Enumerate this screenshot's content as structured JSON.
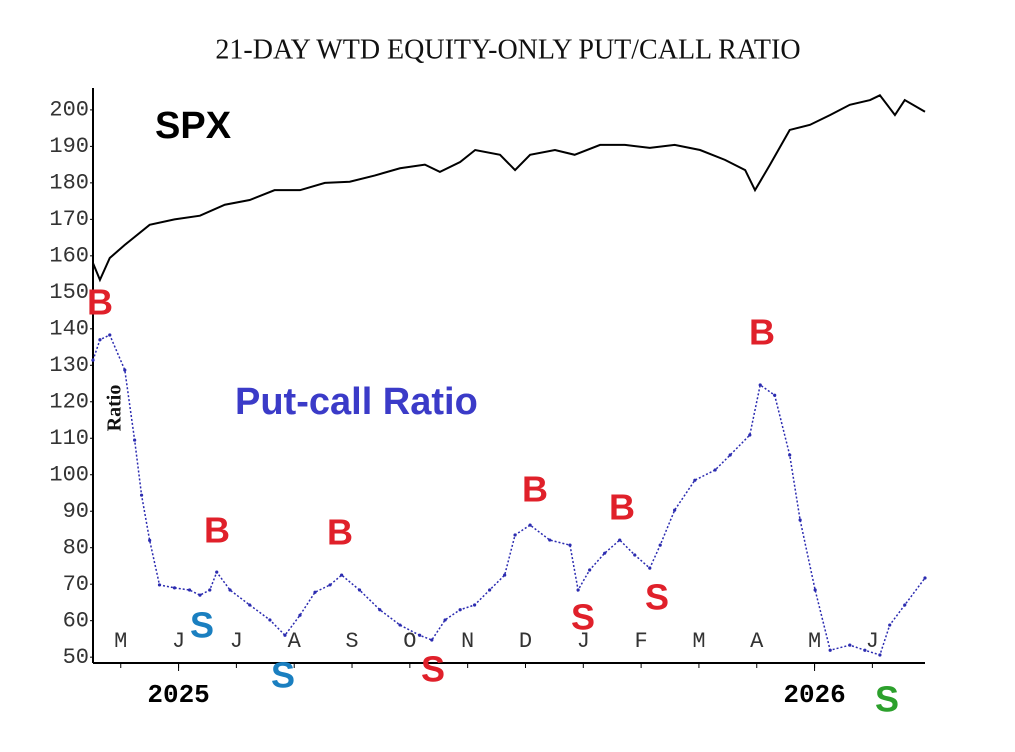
{
  "chart_data": {
    "type": "line",
    "title": "21-DAY WTD EQUITY-ONLY PUT/CALL RATIO",
    "y_label": "Ratio",
    "xlim": [
      -0.48,
      13.91
    ],
    "xticks": [
      {
        "value": 0,
        "label": "M"
      },
      {
        "value": 1,
        "label": "J"
      },
      {
        "value": 2,
        "label": "J"
      },
      {
        "value": 3,
        "label": "A"
      },
      {
        "value": 4,
        "label": "S"
      },
      {
        "value": 5,
        "label": "O"
      },
      {
        "value": 6,
        "label": "N"
      },
      {
        "value": 7,
        "label": "D"
      },
      {
        "value": 8,
        "label": "J"
      },
      {
        "value": 9,
        "label": "F"
      },
      {
        "value": 10,
        "label": "M"
      },
      {
        "value": 11,
        "label": "A"
      },
      {
        "value": 12,
        "label": "M"
      },
      {
        "value": 13,
        "label": "J"
      }
    ],
    "years": [
      {
        "value": 1,
        "label": "2025"
      },
      {
        "value": 12,
        "label": "2026"
      }
    ],
    "ylim": [
      48.4,
      206
    ],
    "yticks": [
      50,
      60,
      70,
      80,
      90,
      100,
      110,
      120,
      130,
      140,
      150,
      160,
      170,
      180,
      190,
      200
    ],
    "series": [
      {
        "name": "SPX",
        "color": "#000000",
        "x": [
          -0.48,
          -0.36,
          -0.19,
          0.07,
          0.5,
          0.93,
          1.37,
          1.8,
          2.23,
          2.66,
          3.1,
          3.53,
          3.96,
          4.39,
          4.83,
          5.26,
          5.52,
          5.87,
          6.13,
          6.56,
          6.82,
          7.08,
          7.51,
          7.85,
          8.29,
          8.72,
          9.15,
          9.58,
          10.02,
          10.45,
          10.8,
          10.97,
          11.23,
          11.57,
          11.92,
          12.27,
          12.61,
          12.96,
          13.13,
          13.39,
          13.56,
          13.91
        ],
        "values": [
          158,
          153.4,
          159.4,
          163,
          168.5,
          170,
          171,
          174,
          175.3,
          178,
          178,
          180,
          180.3,
          182,
          184,
          185,
          183,
          185.7,
          189,
          187.7,
          183.5,
          187.7,
          189,
          187.7,
          190.4,
          190.4,
          189.6,
          190.4,
          189,
          186.3,
          183.5,
          178,
          185,
          194.5,
          195.9,
          198.6,
          201.4,
          202.7,
          204,
          198.6,
          202.7,
          199.5
        ]
      },
      {
        "name": "Put-call Ratio",
        "color": "#2b2bb0",
        "x": [
          -0.48,
          -0.36,
          -0.19,
          0.07,
          0.24,
          0.36,
          0.5,
          0.67,
          0.93,
          1.19,
          1.37,
          1.54,
          1.66,
          1.89,
          2.23,
          2.58,
          2.84,
          3.1,
          3.36,
          3.62,
          3.82,
          4.13,
          4.48,
          4.83,
          5.17,
          5.38,
          5.61,
          5.87,
          6.12,
          6.38,
          6.64,
          6.82,
          7.08,
          7.42,
          7.77,
          7.91,
          8.11,
          8.37,
          8.63,
          8.89,
          9.15,
          9.33,
          9.58,
          9.93,
          10.28,
          10.54,
          10.88,
          11.06,
          11.31,
          11.57,
          11.75,
          12.01,
          12.27,
          12.61,
          12.87,
          13.13,
          13.3,
          13.56,
          13.91
        ],
        "values": [
          131.4,
          137,
          138.3,
          128.7,
          109.5,
          94.4,
          82,
          69.8,
          69,
          68.4,
          67,
          68.4,
          73.3,
          68.4,
          64.3,
          60.2,
          56,
          61.5,
          67.8,
          69.8,
          72.5,
          68.4,
          63,
          58.8,
          56,
          54.7,
          60.2,
          63,
          64.3,
          68.4,
          72.5,
          83.5,
          86.2,
          82.1,
          80.7,
          68.4,
          73.9,
          78.5,
          82.1,
          78,
          74.4,
          80.7,
          90.3,
          98.5,
          101.3,
          105.4,
          110.9,
          124.6,
          121.8,
          105.4,
          87.6,
          68.4,
          51.9,
          53.3,
          51.9,
          50.6,
          58.8,
          64.3,
          71.7
        ]
      }
    ],
    "annotations": [
      {
        "text": "B",
        "color": "#e0202a"
      },
      {
        "text": "S",
        "color": "#1a7fc0"
      },
      {
        "text": "B",
        "color": "#e0202a"
      },
      {
        "text": "S",
        "color": "#1a7fc0"
      },
      {
        "text": "B",
        "color": "#e0202a"
      },
      {
        "text": "S",
        "color": "#e0202a"
      },
      {
        "text": "B",
        "color": "#e0202a"
      },
      {
        "text": "S",
        "color": "#e0202a"
      },
      {
        "text": "B",
        "color": "#e0202a"
      },
      {
        "text": "S",
        "color": "#e0202a"
      },
      {
        "text": "B",
        "color": "#e0202a"
      },
      {
        "text": "S",
        "color": "#2ca02c"
      }
    ]
  }
}
